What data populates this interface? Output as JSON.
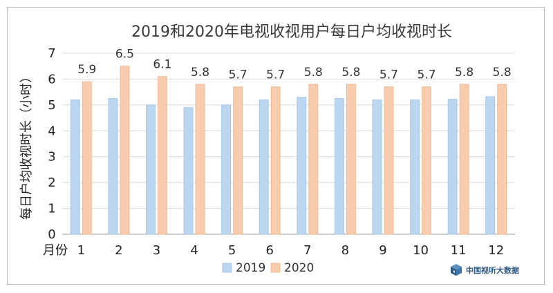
{
  "chart_data": {
    "type": "bar",
    "title": "2019和2020年电视收视用户每日户均收视时长",
    "ylabel": "每日户均收视时长（小时）",
    "xlabel": "月份",
    "categories": [
      "1",
      "2",
      "3",
      "4",
      "5",
      "6",
      "7",
      "8",
      "9",
      "10",
      "11",
      "12"
    ],
    "ylim": [
      0,
      7
    ],
    "yticks": [
      0,
      1,
      2,
      3,
      4,
      5,
      6,
      7
    ],
    "grid": true,
    "legend_position": "bottom",
    "series": [
      {
        "name": "2019",
        "color": "#bcd6ef",
        "values": [
          5.2,
          5.25,
          5.0,
          4.9,
          5.0,
          5.2,
          5.3,
          5.25,
          5.2,
          5.2,
          5.22,
          5.32
        ]
      },
      {
        "name": "2020",
        "color": "#f8ccac",
        "values": [
          5.9,
          6.5,
          6.1,
          5.8,
          5.7,
          5.7,
          5.8,
          5.8,
          5.7,
          5.7,
          5.8,
          5.8
        ],
        "labels": [
          "5.9",
          "6.5",
          "6.1",
          "5.8",
          "5.7",
          "5.7",
          "5.8",
          "5.8",
          "5.7",
          "5.7",
          "5.8",
          "5.8"
        ]
      }
    ]
  },
  "brand": {
    "text": "中国视听大数据",
    "icon": "cube-logo-icon",
    "color": "#2e5a84"
  }
}
